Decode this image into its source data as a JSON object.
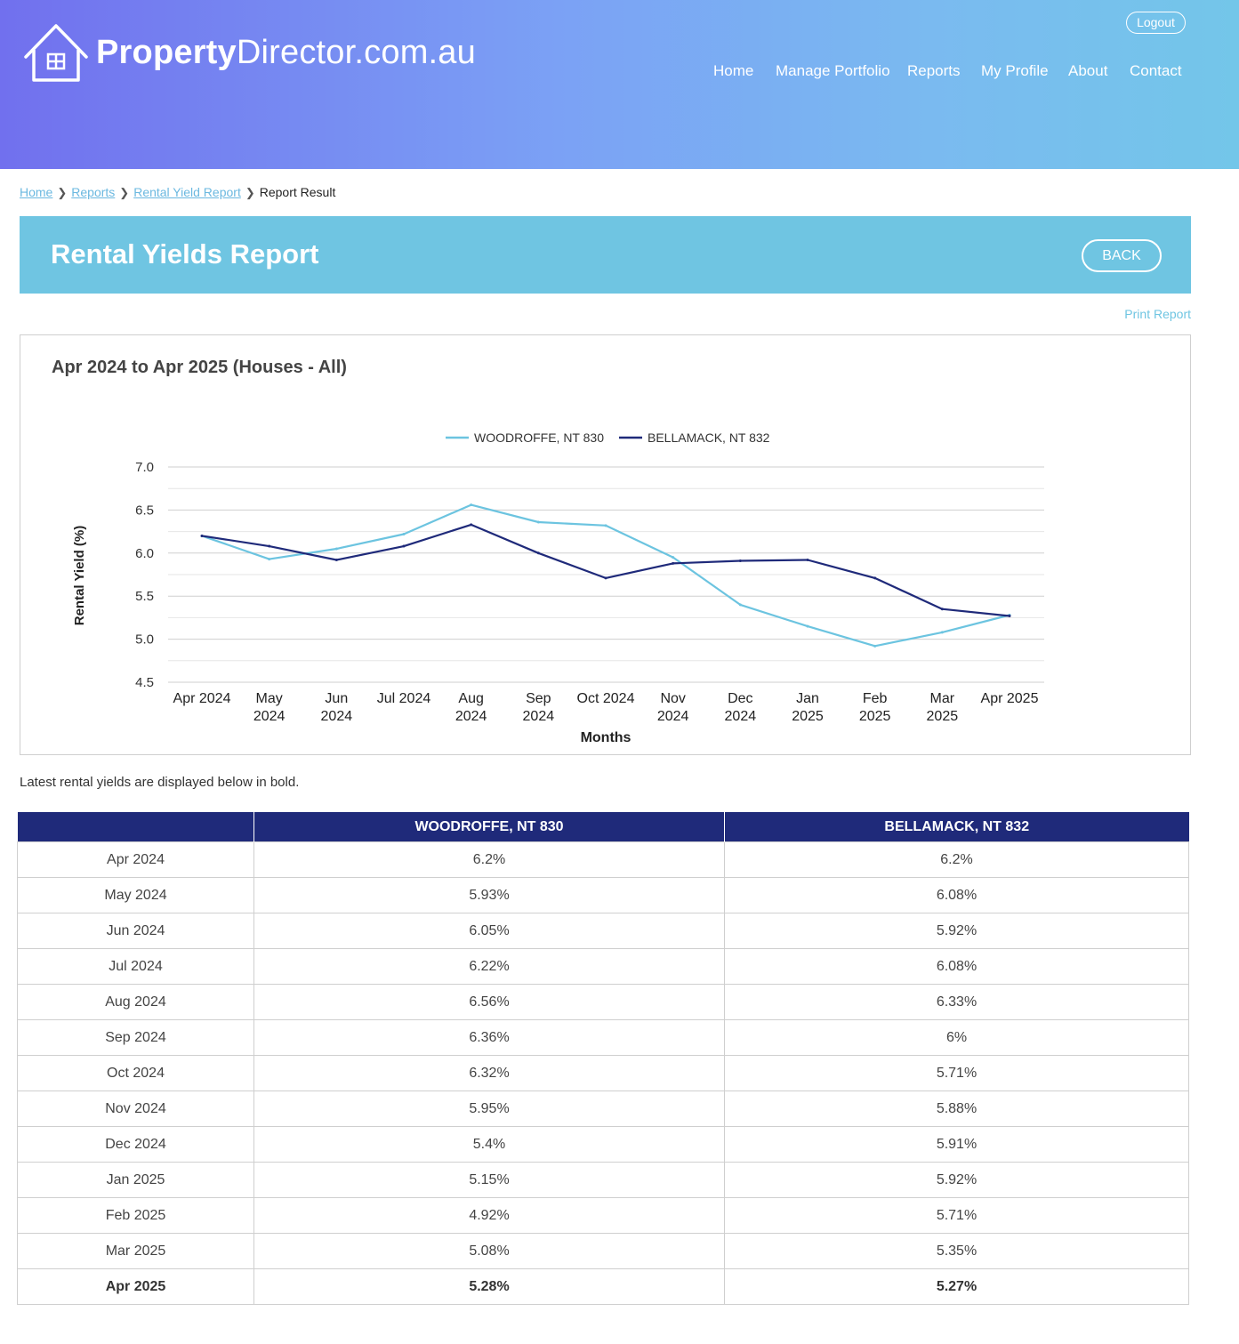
{
  "header": {
    "logo_bold": "Property",
    "logo_light": "Director.com.au",
    "logout_label": "Logout",
    "nav": [
      "Home",
      "Manage Portfolio",
      "Reports",
      "My Profile",
      "About",
      "Contact"
    ]
  },
  "breadcrumb": {
    "home": "Home",
    "reports": "Reports",
    "rental_yield_report": "Rental Yield Report",
    "current": "Report Result"
  },
  "banner": {
    "title": "Rental Yields Report",
    "back_label": "BACK"
  },
  "print_label": "Print Report",
  "chart_heading": "Apr 2024 to Apr 2025 (Houses - All)",
  "chart_data": {
    "type": "line",
    "x": [
      "Apr 2024",
      "May 2024",
      "Jun 2024",
      "Jul 2024",
      "Aug 2024",
      "Sep 2024",
      "Oct 2024",
      "Nov 2024",
      "Dec 2024",
      "Jan 2025",
      "Feb 2025",
      "Mar 2025",
      "Apr 2025"
    ],
    "x_tick_labels": [
      [
        "Apr 2024"
      ],
      [
        "May",
        "2024"
      ],
      [
        "Jun",
        "2024"
      ],
      [
        "Jul 2024"
      ],
      [
        "Aug",
        "2024"
      ],
      [
        "Sep",
        "2024"
      ],
      [
        "Oct 2024"
      ],
      [
        "Nov",
        "2024"
      ],
      [
        "Dec",
        "2024"
      ],
      [
        "Jan",
        "2025"
      ],
      [
        "Feb",
        "2025"
      ],
      [
        "Mar",
        "2025"
      ],
      [
        "Apr 2025"
      ]
    ],
    "series": [
      {
        "name": "WOODROFFE, NT 830",
        "color": "#6cc4e0",
        "values": [
          6.2,
          5.93,
          6.05,
          6.22,
          6.56,
          6.36,
          6.32,
          5.95,
          5.4,
          5.15,
          4.92,
          5.08,
          5.28
        ]
      },
      {
        "name": "BELLAMACK, NT 832",
        "color": "#1f2a7a",
        "values": [
          6.2,
          6.08,
          5.92,
          6.08,
          6.33,
          6.0,
          5.71,
          5.88,
          5.91,
          5.92,
          5.71,
          5.35,
          5.27
        ]
      }
    ],
    "xlabel": "Months",
    "ylabel": "Rental Yield (%)",
    "ylim": [
      4.5,
      7.0
    ],
    "y_ticks": [
      "4.5",
      "5.0",
      "5.5",
      "6.0",
      "6.5",
      "7.0"
    ],
    "grid": true,
    "legend_position": "top-center"
  },
  "note": "Latest rental yields are displayed below in bold.",
  "table": {
    "headers": [
      "",
      "WOODROFFE, NT 830",
      "BELLAMACK, NT 832"
    ],
    "rows": [
      [
        "Apr 2024",
        "6.2%",
        "6.2%"
      ],
      [
        "May 2024",
        "5.93%",
        "6.08%"
      ],
      [
        "Jun 2024",
        "6.05%",
        "5.92%"
      ],
      [
        "Jul 2024",
        "6.22%",
        "6.08%"
      ],
      [
        "Aug 2024",
        "6.56%",
        "6.33%"
      ],
      [
        "Sep 2024",
        "6.36%",
        "6%"
      ],
      [
        "Oct 2024",
        "6.32%",
        "5.71%"
      ],
      [
        "Nov 2024",
        "5.95%",
        "5.88%"
      ],
      [
        "Dec 2024",
        "5.4%",
        "5.91%"
      ],
      [
        "Jan 2025",
        "5.15%",
        "5.92%"
      ],
      [
        "Feb 2025",
        "4.92%",
        "5.71%"
      ],
      [
        "Mar 2025",
        "5.08%",
        "5.35%"
      ],
      [
        "Apr 2025",
        "5.28%",
        "5.27%"
      ]
    ]
  }
}
